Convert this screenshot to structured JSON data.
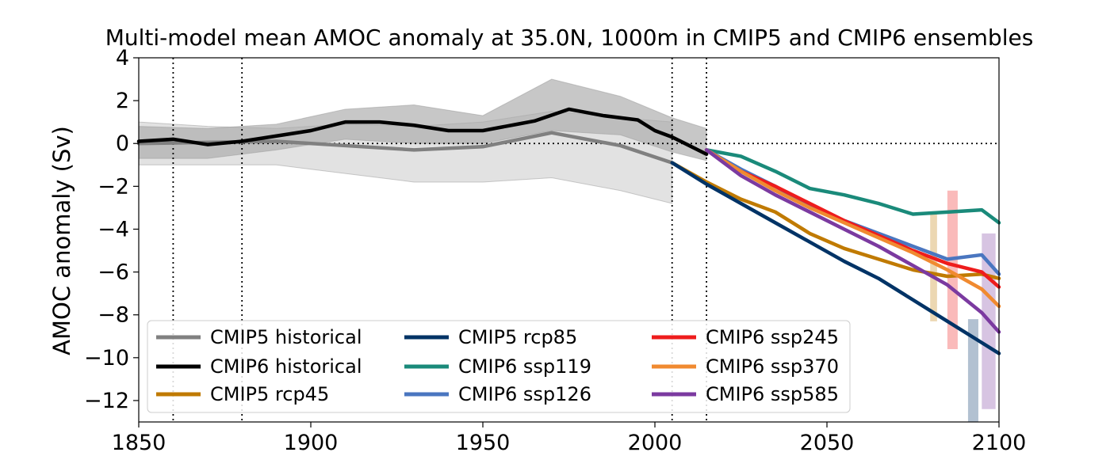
{
  "chart_data": {
    "type": "line",
    "title": "Multi-model mean AMOC anomaly at 35.0N, 1000m in CMIP5 and CMIP6 ensembles",
    "xlabel": "",
    "ylabel": "AMOC anomaly (Sv)",
    "xlim": [
      1850,
      2100
    ],
    "ylim": [
      -13,
      4
    ],
    "xticks": [
      1850,
      1900,
      1950,
      2000,
      2050,
      2100
    ],
    "yticks": [
      -12,
      -10,
      -8,
      -6,
      -4,
      -2,
      0,
      2,
      4
    ],
    "grid": false,
    "legend_placement": "lower-left",
    "reference_lines": {
      "vertical_dotted_years": [
        1860,
        1880,
        2005,
        2015
      ],
      "horizontal_dotted_value": 0
    },
    "series": [
      {
        "name": "CMIP5 historical",
        "color": "#808080",
        "x": [
          1850,
          1870,
          1890,
          1910,
          1930,
          1950,
          1970,
          1990,
          2005
        ],
        "y": [
          0.0,
          0.05,
          0.1,
          -0.1,
          -0.3,
          -0.15,
          0.5,
          -0.1,
          -0.9
        ]
      },
      {
        "name": "CMIP6 historical",
        "color": "#000000",
        "x": [
          1850,
          1860,
          1870,
          1880,
          1890,
          1900,
          1910,
          1920,
          1930,
          1940,
          1950,
          1960,
          1965,
          1975,
          1985,
          1995,
          2000,
          2005,
          2010,
          2015
        ],
        "y": [
          0.1,
          0.2,
          -0.05,
          0.1,
          0.35,
          0.6,
          1.0,
          1.0,
          0.85,
          0.6,
          0.6,
          0.9,
          1.05,
          1.6,
          1.3,
          1.1,
          0.6,
          0.3,
          -0.1,
          -0.5
        ]
      },
      {
        "name": "CMIP5 rcp45",
        "color": "#c07a00",
        "x": [
          2005,
          2015,
          2025,
          2035,
          2045,
          2055,
          2065,
          2075,
          2085,
          2095,
          2100
        ],
        "y": [
          -0.9,
          -1.8,
          -2.6,
          -3.2,
          -4.2,
          -4.9,
          -5.4,
          -5.9,
          -6.2,
          -6.1,
          -6.3
        ]
      },
      {
        "name": "CMIP5 rcp85",
        "color": "#003366",
        "x": [
          2005,
          2015,
          2025,
          2035,
          2045,
          2055,
          2065,
          2075,
          2085,
          2095,
          2100
        ],
        "y": [
          -0.9,
          -1.9,
          -2.8,
          -3.7,
          -4.6,
          -5.5,
          -6.3,
          -7.3,
          -8.3,
          -9.3,
          -9.8
        ]
      },
      {
        "name": "CMIP6 ssp119",
        "color": "#1a8a7a",
        "x": [
          2015,
          2025,
          2035,
          2045,
          2055,
          2065,
          2075,
          2085,
          2095,
          2100
        ],
        "y": [
          -0.3,
          -0.6,
          -1.3,
          -2.1,
          -2.4,
          -2.8,
          -3.3,
          -3.2,
          -3.1,
          -3.7
        ]
      },
      {
        "name": "CMIP6 ssp126",
        "color": "#4a76c0",
        "x": [
          2015,
          2025,
          2035,
          2045,
          2055,
          2065,
          2075,
          2085,
          2095,
          2100
        ],
        "y": [
          -0.3,
          -1.2,
          -2.0,
          -2.9,
          -3.6,
          -4.2,
          -4.8,
          -5.4,
          -5.2,
          -6.1
        ]
      },
      {
        "name": "CMIP6 ssp245",
        "color": "#ee1c1c",
        "x": [
          2015,
          2025,
          2035,
          2045,
          2055,
          2065,
          2075,
          2085,
          2095,
          2100
        ],
        "y": [
          -0.3,
          -1.3,
          -2.0,
          -2.8,
          -3.6,
          -4.3,
          -5.0,
          -5.6,
          -6.0,
          -6.7
        ]
      },
      {
        "name": "CMIP6 ssp370",
        "color": "#f08a30",
        "x": [
          2015,
          2025,
          2035,
          2045,
          2055,
          2065,
          2075,
          2085,
          2095,
          2100
        ],
        "y": [
          -0.3,
          -1.3,
          -2.2,
          -3.0,
          -3.7,
          -4.4,
          -5.1,
          -5.9,
          -6.8,
          -7.6
        ]
      },
      {
        "name": "CMIP6 ssp585",
        "color": "#7b3aa0",
        "x": [
          2015,
          2025,
          2035,
          2045,
          2055,
          2065,
          2075,
          2085,
          2095,
          2100
        ],
        "y": [
          -0.3,
          -1.5,
          -2.4,
          -3.2,
          -4.0,
          -4.8,
          -5.7,
          -6.6,
          -7.9,
          -8.8
        ]
      }
    ],
    "uncertainty_bands": [
      {
        "series": "CMIP5 historical",
        "color": "#d3d3d3",
        "x": [
          1850,
          1870,
          1890,
          1910,
          1930,
          1950,
          1970,
          1990,
          2005
        ],
        "lower": [
          -1.0,
          -1.0,
          -1.0,
          -1.4,
          -1.8,
          -1.8,
          -1.6,
          -2.2,
          -2.8
        ],
        "upper": [
          1.0,
          0.8,
          0.7,
          0.9,
          0.8,
          1.0,
          1.5,
          1.2,
          1.0
        ]
      },
      {
        "series": "CMIP6 historical",
        "color": "#a9a9a9",
        "x": [
          1850,
          1870,
          1890,
          1910,
          1930,
          1950,
          1970,
          1990,
          2005,
          2015
        ],
        "lower": [
          -0.7,
          -0.7,
          -0.3,
          0.2,
          0.0,
          0.0,
          0.6,
          0.4,
          -0.4,
          -0.8
        ],
        "upper": [
          0.8,
          0.7,
          0.9,
          1.6,
          1.8,
          1.3,
          3.0,
          2.2,
          1.2,
          0.7
        ]
      },
      {
        "series": "CMIP5 rcp45",
        "color": "#c07a00",
        "x": [
          2080,
          2082
        ],
        "lower": [
          -8.3,
          -8.3
        ],
        "upper": [
          -3.3,
          -3.3
        ]
      },
      {
        "series": "CMIP6 ssp245",
        "color": "#ee1c1c",
        "x": [
          2085,
          2088
        ],
        "lower": [
          -9.6,
          -9.6
        ],
        "upper": [
          -2.2,
          -2.2
        ]
      },
      {
        "series": "CMIP5 rcp85",
        "color": "#003366",
        "x": [
          2091,
          2094
        ],
        "lower": [
          -13.0,
          -13.0
        ],
        "upper": [
          -8.2,
          -8.2
        ]
      },
      {
        "series": "CMIP6 ssp585",
        "color": "#7b3aa0",
        "x": [
          2095,
          2099
        ],
        "lower": [
          -12.4,
          -12.4
        ],
        "upper": [
          -4.2,
          -4.2
        ]
      }
    ]
  }
}
